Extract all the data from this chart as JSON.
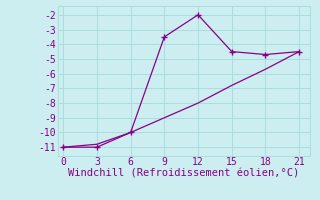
{
  "xlabel": "Windchill (Refroidissement éolien,°C)",
  "line1_x": [
    0,
    3,
    6,
    9,
    12,
    15,
    18,
    21
  ],
  "line1_y": [
    -11,
    -11,
    -10,
    -3.5,
    -2,
    -4.5,
    -4.7,
    -4.5
  ],
  "line2_x": [
    0,
    3,
    6,
    9,
    12,
    15,
    18,
    21
  ],
  "line2_y": [
    -11,
    -10.8,
    -10,
    -9.0,
    -8.0,
    -6.8,
    -5.7,
    -4.5
  ],
  "line_color": "#880088",
  "bg_color": "#cceef0",
  "grid_color": "#aadddd",
  "text_color": "#880088",
  "xlim": [
    -0.5,
    22
  ],
  "ylim": [
    -11.6,
    -1.4
  ],
  "xticks": [
    0,
    3,
    6,
    9,
    12,
    15,
    18,
    21
  ],
  "yticks": [
    -11,
    -10,
    -9,
    -8,
    -7,
    -6,
    -5,
    -4,
    -3,
    -2
  ],
  "fontsize": 7,
  "xlabel_fontsize": 7.5
}
